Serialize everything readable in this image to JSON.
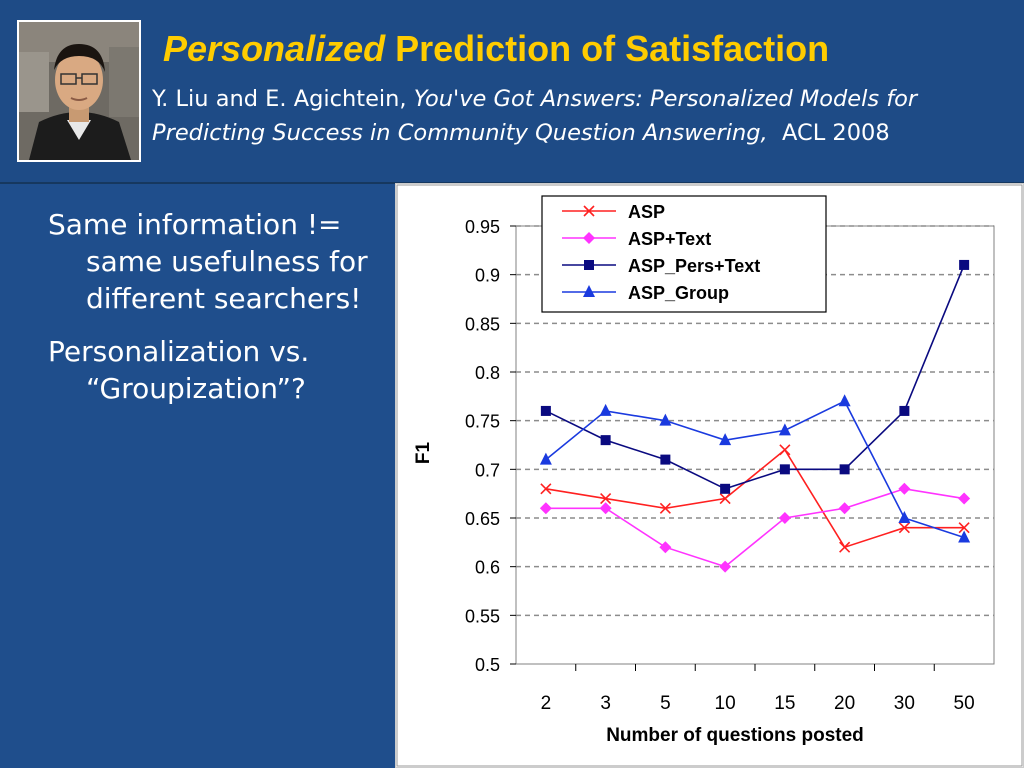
{
  "slide": {
    "title_italic": "Personalized",
    "title_rest": "Prediction of Satisfaction",
    "citation_authors": "Y. Liu and E. Agichtein,",
    "citation_title": "You've Got Answers: Personalized Models for Predicting Success in Community Question Answering,",
    "citation_venue": "ACL 2008",
    "bullets": [
      "Same information != same usefulness for different searchers!",
      "Personalization vs. “Groupization”?"
    ],
    "colors": {
      "background": "#1f4e8c",
      "title": "#ffcc00",
      "text": "#ffffff"
    }
  },
  "chart_data": {
    "type": "line",
    "categories": [
      "2",
      "3",
      "5",
      "10",
      "15",
      "20",
      "30",
      "50"
    ],
    "xlabel": "Number of questions posted",
    "ylabel": "F1",
    "ylim": [
      0.5,
      0.95
    ],
    "yticks": [
      0.5,
      0.55,
      0.6,
      0.65,
      0.7,
      0.75,
      0.8,
      0.85,
      0.9,
      0.95
    ],
    "ytick_labels": [
      "0.5",
      "0.55",
      "0.6",
      "0.65",
      "0.7",
      "0.75",
      "0.8",
      "0.85",
      "0.9",
      "0.95"
    ],
    "grid": "horizontal dashed",
    "legend_position": "top",
    "series": [
      {
        "name": "ASP",
        "marker": "x",
        "color": "#ff2020",
        "values": [
          0.68,
          0.67,
          0.66,
          0.67,
          0.72,
          0.62,
          0.64,
          0.64
        ]
      },
      {
        "name": "ASP+Text",
        "marker": "diamond",
        "color": "#ff33ff",
        "values": [
          0.66,
          0.66,
          0.62,
          0.6,
          0.65,
          0.66,
          0.68,
          0.67
        ]
      },
      {
        "name": "ASP_Pers+Text",
        "marker": "square",
        "color": "#0a0a80",
        "values": [
          0.76,
          0.73,
          0.71,
          0.68,
          0.7,
          0.7,
          0.76,
          0.91
        ]
      },
      {
        "name": "ASP_Group",
        "marker": "triangle",
        "color": "#1a3adf",
        "values": [
          0.71,
          0.76,
          0.75,
          0.73,
          0.74,
          0.77,
          0.65,
          0.63
        ]
      }
    ]
  }
}
